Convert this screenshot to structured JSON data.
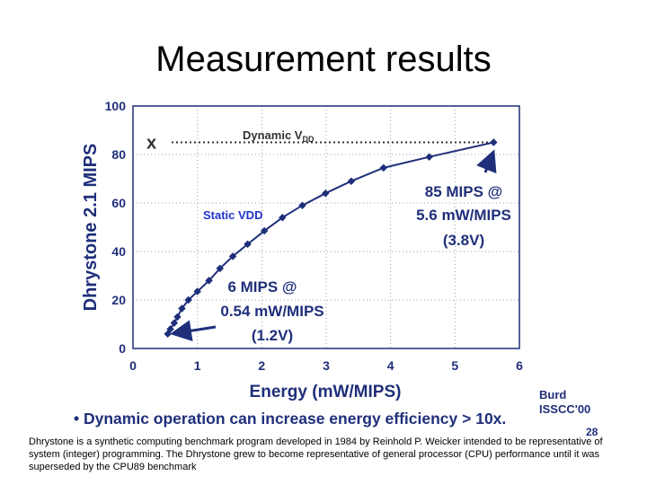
{
  "slide": {
    "title": "Measurement results",
    "bullet": "• Dynamic operation can increase energy efficiency > 10x.",
    "credit_line1": "Burd",
    "credit_line2": "ISSCC'00",
    "page_number": "28",
    "caption": "Dhrystone is a synthetic computing benchmark program developed in 1984 by Reinhold P. Weicker intended to be representative of system (integer) programming. The Dhrystone grew to become representative of general processor (CPU) performance until it was superseded by the CPU89 benchmark"
  },
  "colors": {
    "series": "#1f2f7a",
    "annotation": "#1f2f7a",
    "static_label": "#2233cc",
    "dynamic_label": "#333333",
    "axis_text": "#1f2f7a",
    "grid": "#9aa0b5"
  },
  "chart_data": {
    "type": "line",
    "xlabel": "Energy (mW/MIPS)",
    "ylabel": "Dhrystone 2.1 MIPS",
    "xlim": [
      0,
      6
    ],
    "ylim": [
      0,
      100
    ],
    "x_ticks": [
      "0",
      "1",
      "2",
      "3",
      "4",
      "5",
      "6"
    ],
    "y_ticks": [
      "0",
      "20",
      "40",
      "60",
      "80",
      "100"
    ],
    "grid": true,
    "series": [
      {
        "name": "Static VDD",
        "x": [
          0.54,
          0.58,
          0.64,
          0.69,
          0.76,
          0.86,
          1.0,
          1.18,
          1.35,
          1.55,
          1.78,
          2.04,
          2.32,
          2.63,
          2.99,
          3.39,
          3.89,
          4.6,
          5.6
        ],
        "y": [
          6,
          8,
          10.5,
          13,
          16.5,
          20,
          23.5,
          28,
          33,
          38,
          43,
          48.5,
          54,
          59,
          64,
          69,
          74.5,
          79,
          85
        ]
      }
    ],
    "dynamic_line": {
      "x": [
        0.6,
        5.6
      ],
      "y": [
        85,
        85
      ]
    },
    "annotations": {
      "dynamic": {
        "x_mark": "x",
        "label": "Dynamic V",
        "subscript": "DD"
      },
      "static": {
        "label": "Static V",
        "subscript": "DD"
      },
      "high_point": {
        "line1": "85 MIPS @",
        "line2": "5.6 mW/MIPS",
        "line3": "(3.8V)"
      },
      "low_point": {
        "line1": "6 MIPS @",
        "line2": "0.54 mW/MIPS",
        "line3": "(1.2V)"
      }
    }
  }
}
